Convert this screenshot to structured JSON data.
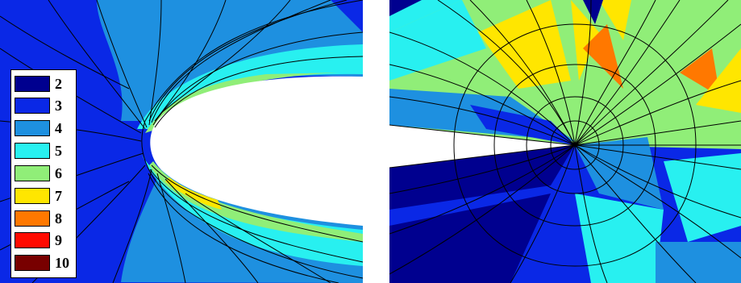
{
  "colors": {
    "level_2": "#00008f",
    "level_3": "#0a28e6",
    "level_4": "#1e90e0",
    "level_5": "#28f0f0",
    "level_6": "#90ee78",
    "level_7": "#ffe600",
    "level_8": "#ff7800",
    "level_9": "#ff0a00",
    "level_10": "#780000",
    "mesh_line": "#000000",
    "airfoil": "#ffffff"
  },
  "legend": {
    "entries": [
      {
        "label": "2",
        "color": "#00008f"
      },
      {
        "label": "3",
        "color": "#0a28e6"
      },
      {
        "label": "4",
        "color": "#1e90e0"
      },
      {
        "label": "5",
        "color": "#28f0f0"
      },
      {
        "label": "6",
        "color": "#90ee78"
      },
      {
        "label": "7",
        "color": "#ffe600"
      },
      {
        "label": "8",
        "color": "#ff7800"
      },
      {
        "label": "9",
        "color": "#ff0a00"
      },
      {
        "label": "10",
        "color": "#780000"
      }
    ]
  }
}
